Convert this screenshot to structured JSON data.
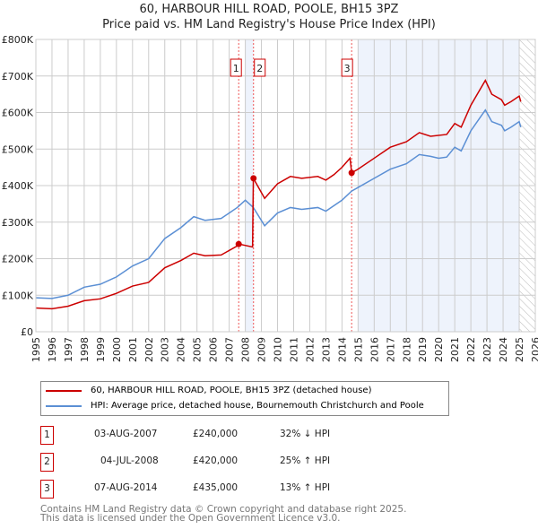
{
  "chart_data": {
    "type": "line",
    "title": "60, HARBOUR HILL ROAD, POOLE, BH15 3PZ",
    "subtitle": "Price paid vs. HM Land Registry's House Price Index (HPI)",
    "xlim": [
      1995,
      2026
    ],
    "ylim": [
      0,
      800000
    ],
    "x_ticks": [
      "1995",
      "1996",
      "1997",
      "1998",
      "1999",
      "2000",
      "2001",
      "2002",
      "2003",
      "2004",
      "2005",
      "2006",
      "2007",
      "2008",
      "2009",
      "2010",
      "2011",
      "2012",
      "2013",
      "2014",
      "2015",
      "2016",
      "2017",
      "2018",
      "2019",
      "2020",
      "2021",
      "2022",
      "2023",
      "2024",
      "2025",
      "2026"
    ],
    "y_ticks": [
      {
        "v": 0,
        "label": "£0"
      },
      {
        "v": 100000,
        "label": "£100K"
      },
      {
        "v": 200000,
        "label": "£200K"
      },
      {
        "v": 300000,
        "label": "£300K"
      },
      {
        "v": 400000,
        "label": "£400K"
      },
      {
        "v": 500000,
        "label": "£500K"
      },
      {
        "v": 600000,
        "label": "£600K"
      },
      {
        "v": 700000,
        "label": "£700K"
      },
      {
        "v": 800000,
        "label": "£800K"
      }
    ],
    "grid": true,
    "shaded_ranges": [
      [
        2008.0,
        2008.5
      ],
      [
        2015.0,
        2025.0
      ]
    ],
    "hatched_range": [
      2025.0,
      2026
    ],
    "series": [
      {
        "name": "60, HARBOUR HILL ROAD, POOLE, BH15 3PZ (detached house)",
        "color": "#cc0000",
        "x": [
          1995,
          1996,
          1997,
          1998,
          1999,
          2000,
          2001,
          2002,
          2003,
          2004,
          2004.8,
          2005.5,
          2006.5,
          2007.5,
          2007.6,
          2008.45,
          2008.5,
          2009.2,
          2010,
          2010.8,
          2011.5,
          2012.5,
          2013,
          2013.5,
          2014,
          2014.5,
          2014.6,
          2015,
          2016,
          2017,
          2018,
          2018.8,
          2019.5,
          2020.5,
          2021,
          2021.4,
          2022,
          2022.9,
          2023.3,
          2023.9,
          2024.1,
          2024.5,
          2025,
          2025.1
        ],
        "y": [
          65000,
          63000,
          70000,
          85000,
          90000,
          105000,
          125000,
          135000,
          175000,
          195000,
          215000,
          208000,
          210000,
          235000,
          240000,
          232000,
          420000,
          365000,
          405000,
          425000,
          420000,
          425000,
          415000,
          430000,
          450000,
          475000,
          435000,
          445000,
          475000,
          505000,
          520000,
          545000,
          535000,
          540000,
          570000,
          560000,
          620000,
          688000,
          650000,
          635000,
          620000,
          630000,
          645000,
          630000
        ]
      },
      {
        "name": "HPI: Average price, detached house, Bournemouth Christchurch and Poole",
        "color": "#5b8fd4",
        "x": [
          1995,
          1996,
          1997,
          1998,
          1999,
          2000,
          2001,
          2002,
          2003,
          2004,
          2004.8,
          2005.5,
          2006.5,
          2007.5,
          2008,
          2008.5,
          2009.2,
          2010,
          2010.8,
          2011.5,
          2012.5,
          2013,
          2014,
          2014.6,
          2015,
          2016,
          2017,
          2018,
          2018.8,
          2019.5,
          2020,
          2020.5,
          2021,
          2021.4,
          2022,
          2022.9,
          2023.3,
          2023.9,
          2024.1,
          2024.5,
          2025,
          2025.1
        ],
        "y": [
          93000,
          91000,
          100000,
          122000,
          130000,
          150000,
          180000,
          200000,
          255000,
          285000,
          315000,
          305000,
          310000,
          340000,
          360000,
          340000,
          290000,
          325000,
          340000,
          335000,
          340000,
          330000,
          360000,
          385000,
          395000,
          420000,
          445000,
          460000,
          485000,
          480000,
          475000,
          478000,
          505000,
          495000,
          550000,
          607000,
          575000,
          565000,
          550000,
          560000,
          575000,
          560000
        ]
      }
    ],
    "sales": [
      {
        "id": "1",
        "date": "03-AUG-2007",
        "x": 2007.59,
        "price": 240000,
        "price_label": "£240,000",
        "hpi": "32% ↓ HPI"
      },
      {
        "id": "2",
        "date": "04-JUL-2008",
        "x": 2008.51,
        "price": 420000,
        "price_label": "£420,000",
        "hpi": "25% ↑ HPI"
      },
      {
        "id": "3",
        "date": "07-AUG-2014",
        "x": 2014.6,
        "price": 435000,
        "price_label": "£435,000",
        "hpi": "13% ↑ HPI"
      }
    ]
  },
  "footer": {
    "line1": "Contains HM Land Registry data © Crown copyright and database right 2025.",
    "line2": "This data is licensed under the Open Government Licence v3.0."
  }
}
